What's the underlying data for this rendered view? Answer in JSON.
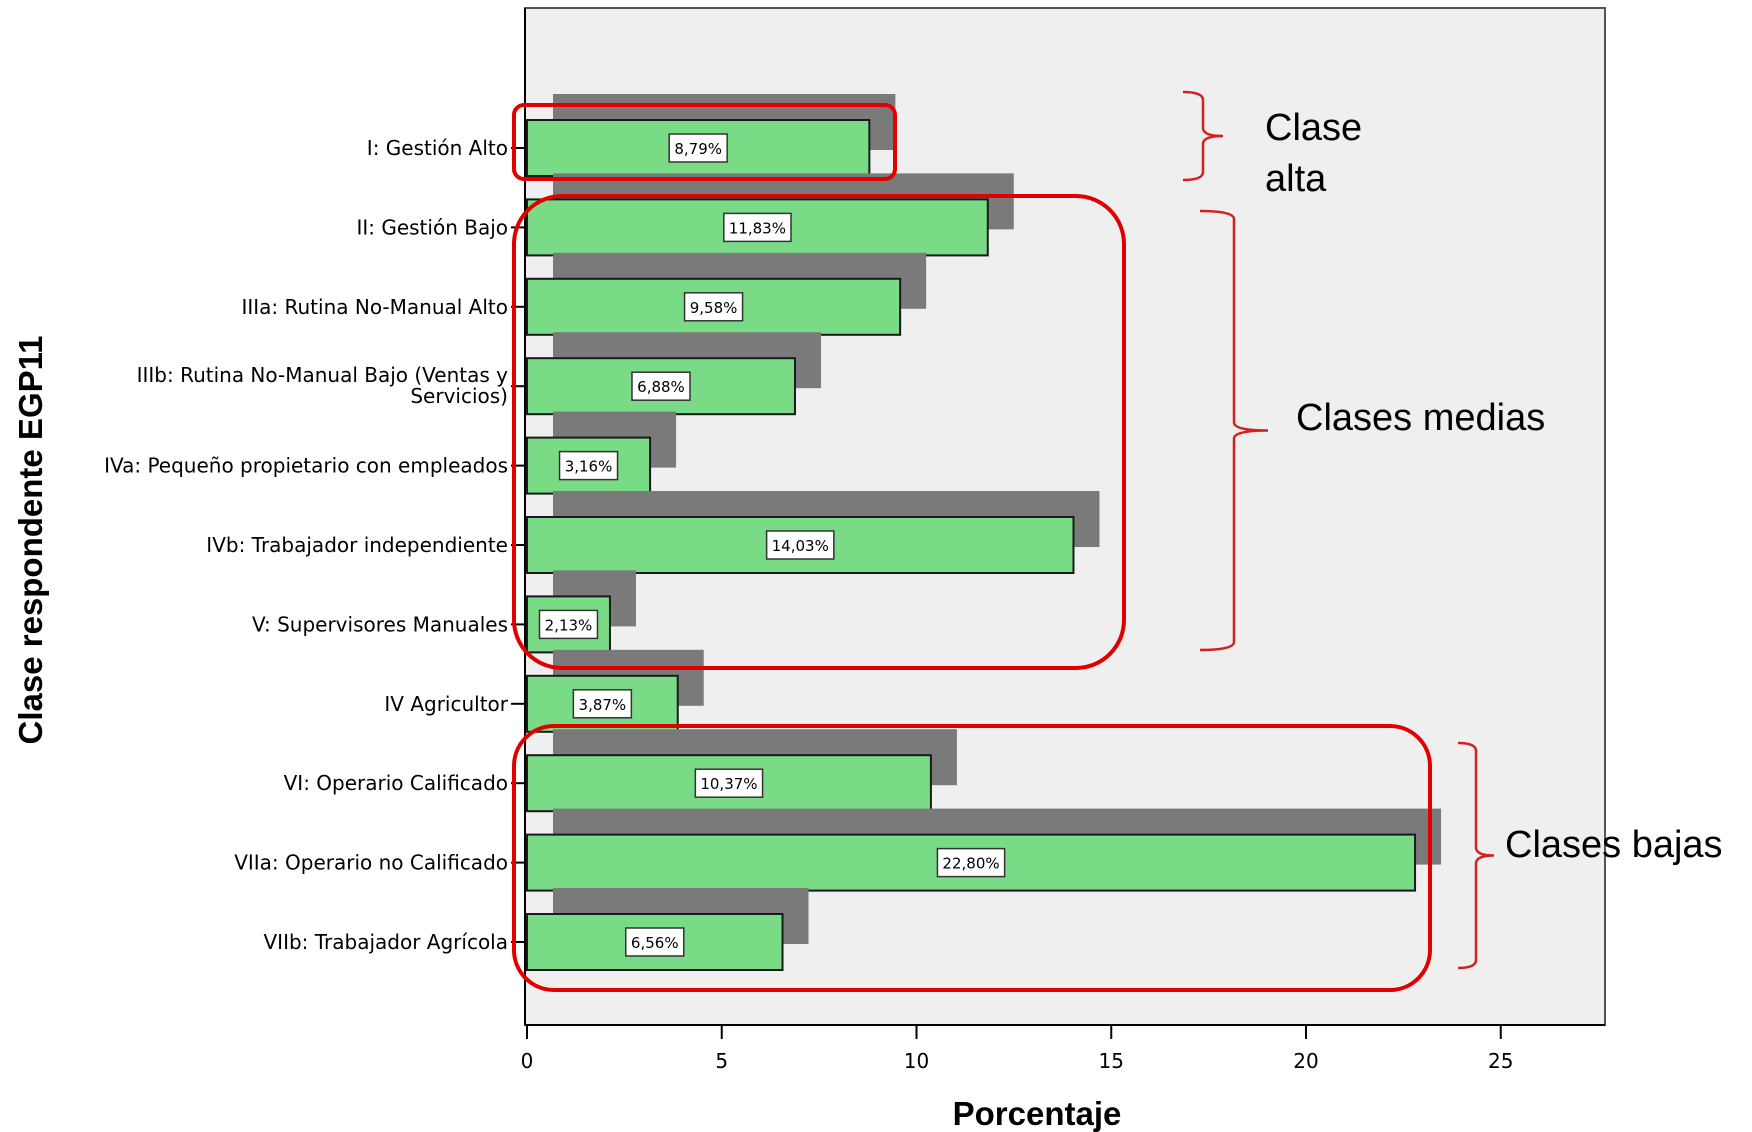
{
  "chart_data": {
    "type": "bar",
    "orientation": "horizontal",
    "xlabel": "Porcentaje",
    "ylabel": "Clase respondente EGP11",
    "xlim": [
      0,
      27.5
    ],
    "xticks": [
      0,
      5,
      10,
      15,
      20,
      25
    ],
    "xtick_labels": [
      "0",
      "5",
      "10",
      "15",
      "20",
      "25"
    ],
    "grid": false,
    "categories": [
      "I: Gestión Alto",
      "II: Gestión Bajo",
      "IIIa: Rutina No-Manual Alto",
      "IIIb: Rutina No-Manual Bajo (Ventas y Servicios)",
      "IVa: Pequeño propietario con empleados",
      "IVb: Trabajador independiente",
      "V: Supervisores Manuales",
      "IV Agricultor",
      "VI: Operario Calificado",
      "VIIa: Operario no Calificado",
      "VIIb: Trabajador Agrícola"
    ],
    "category_lines": [
      [
        "I: Gestión Alto"
      ],
      [
        "II: Gestión Bajo"
      ],
      [
        "IIIa: Rutina No-Manual Alto"
      ],
      [
        "IIIb: Rutina No-Manual Bajo (Ventas y",
        "Servicios)"
      ],
      [
        "IVa: Pequeño propietario con empleados"
      ],
      [
        "IVb: Trabajador independiente"
      ],
      [
        "V: Supervisores Manuales"
      ],
      [
        "IV Agricultor"
      ],
      [
        "VI: Operario Calificado"
      ],
      [
        "VIIa: Operario no Calificado"
      ],
      [
        "VIIb: Trabajador Agrícola"
      ]
    ],
    "values": [
      8.79,
      11.83,
      9.58,
      6.88,
      3.16,
      14.03,
      2.13,
      3.87,
      10.37,
      22.8,
      6.56
    ],
    "value_labels": [
      "8,79%",
      "11,83%",
      "9,58%",
      "6,88%",
      "3,16%",
      "14,03%",
      "2,13%",
      "3,87%",
      "10,37%",
      "22,80%",
      "6,56%"
    ],
    "groups": [
      {
        "label_lines": [
          "Clase",
          "alta"
        ],
        "first": 0,
        "last": 0
      },
      {
        "label_lines": [
          "Clases medias"
        ],
        "first": 1,
        "last": 6
      },
      {
        "label_lines": [
          "Clases bajas"
        ],
        "first": 8,
        "last": 10
      }
    ]
  },
  "colors": {
    "bar_fill": "#79db86",
    "bar_stroke": "#1a1a1a",
    "shadow": "#7a7a7a",
    "plot_bg": "#efefef",
    "highlight_box": "#e00000",
    "bracket": "#d42020"
  }
}
